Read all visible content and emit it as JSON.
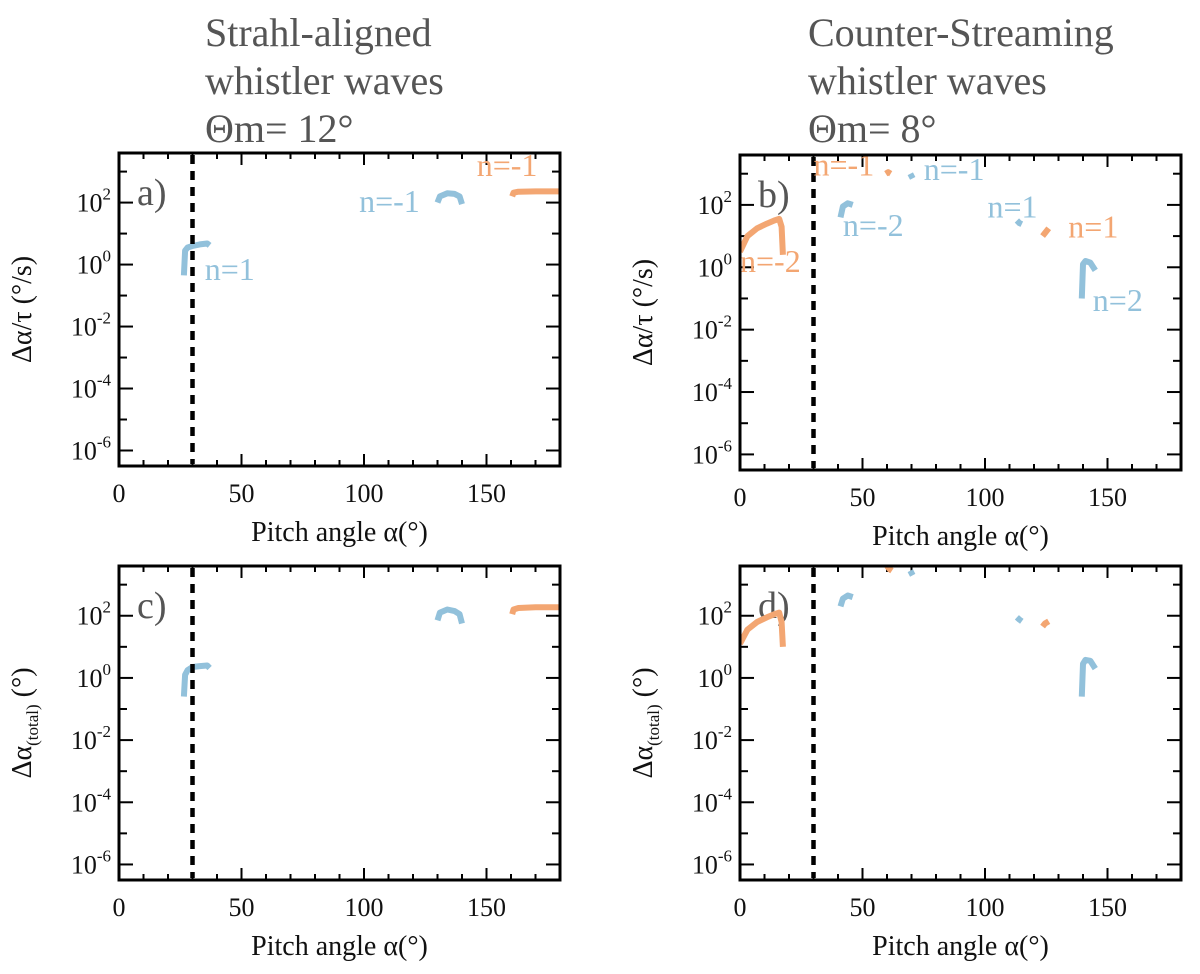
{
  "colors": {
    "blue": "#92c1db",
    "orange": "#f3a672",
    "frame": "#000000",
    "title": "#555555"
  },
  "columns": [
    {
      "title_lines": [
        "Strahl-aligned",
        "whistler waves",
        "Θm= 12°"
      ]
    },
    {
      "title_lines": [
        "Counter-Streaming",
        "whistler waves",
        "Θm= 8°"
      ]
    }
  ],
  "chart_data": [
    {
      "type": "line",
      "panel": "a)",
      "xlabel": "Pitch angle α(°)",
      "ylabel": {
        "main": "Δα/τ (°/s)",
        "sub": ""
      },
      "xlim": [
        0,
        180
      ],
      "ylim_log10": [
        -6.5,
        3.6
      ],
      "xticks": [
        0,
        50,
        100,
        150
      ],
      "ytick_exponents": [
        -6,
        -4,
        -2,
        0,
        2
      ],
      "vline_x": 30,
      "series": [
        {
          "name": "n=1",
          "color": "blue",
          "x": [
            26.5,
            27,
            28,
            30,
            33,
            36,
            37
          ],
          "log10y": [
            -0.35,
            0.45,
            0.55,
            0.6,
            0.65,
            0.68,
            0.62
          ]
        },
        {
          "name": "n=-1",
          "color": "blue",
          "x": [
            130,
            131,
            134,
            137,
            139,
            140
          ],
          "log10y": [
            2.0,
            2.2,
            2.3,
            2.28,
            2.2,
            1.95
          ]
        },
        {
          "name": "n=-1",
          "color": "orange",
          "x": [
            160.5,
            161,
            163,
            170,
            180
          ],
          "log10y": [
            2.2,
            2.32,
            2.35,
            2.36,
            2.36
          ]
        }
      ],
      "annotations": [
        {
          "text": "n=1",
          "color": "blue",
          "x": 35,
          "log10y": -0.5
        },
        {
          "text": "n=-1",
          "color": "blue",
          "x": 98,
          "log10y": 1.7
        },
        {
          "text": "n=-1",
          "color": "orange",
          "x": 146,
          "log10y": 2.85
        }
      ]
    },
    {
      "type": "line",
      "panel": "b)",
      "xlabel": "Pitch angle α(°)",
      "ylabel": {
        "main": "Δα/τ (°/s)",
        "sub": ""
      },
      "xlim": [
        0,
        180
      ],
      "ylim_log10": [
        -6.5,
        3.6
      ],
      "xticks": [
        0,
        50,
        100,
        150
      ],
      "ytick_exponents": [
        -6,
        -4,
        -2,
        0,
        2
      ],
      "vline_x": 30,
      "series": [
        {
          "name": "n=-2",
          "color": "orange",
          "x": [
            0,
            3,
            7,
            11,
            14,
            16,
            17,
            17.5
          ],
          "log10y": [
            0.5,
            1.0,
            1.25,
            1.4,
            1.5,
            1.55,
            1.3,
            0.4
          ]
        },
        {
          "name": "n=-2",
          "color": "blue",
          "x": [
            41,
            42,
            44,
            46
          ],
          "log10y": [
            1.6,
            1.95,
            2.05,
            2.0
          ]
        },
        {
          "name": "n=-1",
          "color": "orange",
          "x": [
            59.5,
            60.5,
            61.5
          ],
          "log10y": [
            3.0,
            3.05,
            3.0
          ]
        },
        {
          "name": "n=-1",
          "color": "blue",
          "x": [
            69.5,
            70.5
          ],
          "log10y": [
            3.0,
            2.85
          ]
        },
        {
          "name": "n=1",
          "color": "blue",
          "x": [
            113,
            114,
            115
          ],
          "log10y": [
            1.5,
            1.42,
            1.38
          ]
        },
        {
          "name": "n=1",
          "color": "orange",
          "x": [
            123.5,
            124.5,
            126
          ],
          "log10y": [
            1.0,
            1.1,
            1.25
          ]
        },
        {
          "name": "n=2",
          "color": "blue",
          "x": [
            139.5,
            140,
            141,
            143,
            145
          ],
          "log10y": [
            -1.0,
            0.1,
            0.2,
            0.15,
            -0.1
          ]
        }
      ],
      "annotations": [
        {
          "text": "n=-1",
          "color": "orange",
          "x": 30,
          "log10y": 2.95
        },
        {
          "text": "n=-1",
          "color": "blue",
          "x": 75,
          "log10y": 2.8
        },
        {
          "text": "n=-2",
          "color": "blue",
          "x": 42,
          "log10y": 1.0
        },
        {
          "text": "n=1",
          "color": "blue",
          "x": 101,
          "log10y": 1.6
        },
        {
          "text": "n=1",
          "color": "orange",
          "x": 134,
          "log10y": 0.95
        },
        {
          "text": "n=-2",
          "color": "orange",
          "x": 0,
          "log10y": -0.15
        },
        {
          "text": "n=2",
          "color": "blue",
          "x": 144,
          "log10y": -1.4
        }
      ]
    },
    {
      "type": "line",
      "panel": "c)",
      "xlabel": "Pitch angle α(°)",
      "ylabel": {
        "main": "Δα",
        "sub": "(total)",
        "unit": "(°)"
      },
      "xlim": [
        0,
        180
      ],
      "ylim_log10": [
        -6.5,
        3.6
      ],
      "xticks": [
        0,
        50,
        100,
        150
      ],
      "ytick_exponents": [
        -6,
        -4,
        -2,
        0,
        2
      ],
      "vline_x": 30,
      "series": [
        {
          "name": "n=1",
          "color": "blue",
          "x": [
            26.5,
            27,
            28,
            30,
            33,
            36,
            37
          ],
          "log10y": [
            -0.6,
            0.1,
            0.25,
            0.35,
            0.38,
            0.4,
            0.32
          ]
        },
        {
          "name": "n=-1",
          "color": "blue",
          "x": [
            130,
            131,
            134,
            137,
            139,
            140
          ],
          "log10y": [
            1.85,
            2.1,
            2.2,
            2.15,
            2.05,
            1.75
          ]
        },
        {
          "name": "n=-1",
          "color": "orange",
          "x": [
            160.5,
            161,
            163,
            170,
            180
          ],
          "log10y": [
            2.05,
            2.2,
            2.25,
            2.27,
            2.27
          ]
        }
      ],
      "annotations": []
    },
    {
      "type": "line",
      "panel": "d)",
      "xlabel": "Pitch angle α(°)",
      "ylabel": {
        "main": "Δα",
        "sub": "(total)",
        "unit": "(°)"
      },
      "xlim": [
        0,
        180
      ],
      "ylim_log10": [
        -6.5,
        3.6
      ],
      "xticks": [
        0,
        50,
        100,
        150
      ],
      "ytick_exponents": [
        -6,
        -4,
        -2,
        0,
        2
      ],
      "vline_x": 30,
      "series": [
        {
          "name": "n=-2",
          "color": "orange",
          "x": [
            0,
            3,
            7,
            11,
            14,
            16,
            17,
            17.5
          ],
          "log10y": [
            1.1,
            1.55,
            1.8,
            1.95,
            2.05,
            2.1,
            1.8,
            1.0
          ]
        },
        {
          "name": "n=-2",
          "color": "blue",
          "x": [
            41,
            42,
            44,
            46
          ],
          "log10y": [
            2.3,
            2.55,
            2.65,
            2.6
          ]
        },
        {
          "name": "n=-1",
          "color": "orange",
          "x": [
            60,
            61,
            62
          ],
          "log10y": [
            3.6,
            3.5,
            3.45
          ]
        },
        {
          "name": "n=-1",
          "color": "blue",
          "x": [
            69.5,
            70.5
          ],
          "log10y": [
            3.45,
            3.3
          ]
        },
        {
          "name": "n=1",
          "color": "blue",
          "x": [
            113,
            114,
            115
          ],
          "log10y": [
            1.95,
            1.88,
            1.82
          ]
        },
        {
          "name": "n=1",
          "color": "orange",
          "x": [
            123.5,
            124.5,
            126
          ],
          "log10y": [
            1.65,
            1.75,
            1.82
          ]
        },
        {
          "name": "n=2",
          "color": "blue",
          "x": [
            139.5,
            140,
            141,
            143,
            145
          ],
          "log10y": [
            -0.6,
            0.45,
            0.58,
            0.55,
            0.3
          ]
        }
      ],
      "annotations": []
    }
  ]
}
